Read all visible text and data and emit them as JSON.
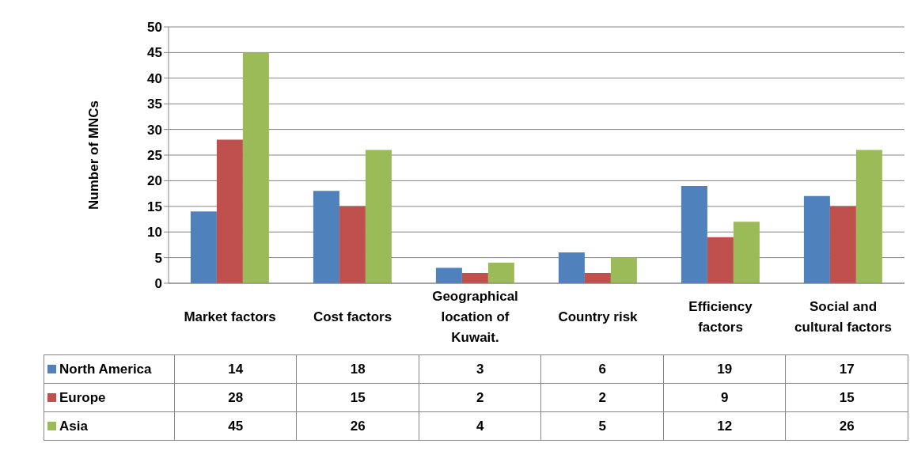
{
  "chart_data": {
    "type": "bar",
    "ylabel": "Number of MNCs",
    "categories": [
      "Market factors",
      "Cost factors",
      "Geographical location of Kuwait.",
      "Country risk",
      "Efficiency factors",
      "Social and cultural factors"
    ],
    "series": [
      {
        "name": "North America",
        "color": "#4f81bd",
        "values": [
          14,
          18,
          3,
          6,
          19,
          17
        ]
      },
      {
        "name": "Europe",
        "color": "#c0504d",
        "values": [
          28,
          15,
          2,
          2,
          9,
          15
        ]
      },
      {
        "name": "Asia",
        "color": "#9bbb59",
        "values": [
          45,
          26,
          4,
          5,
          12,
          26
        ]
      }
    ],
    "ylim": [
      0,
      50
    ],
    "yticks": [
      0,
      5,
      10,
      15,
      20,
      25,
      30,
      35,
      40,
      45,
      50
    ],
    "grid": "y",
    "legend": "bottom",
    "data_labels": true
  }
}
